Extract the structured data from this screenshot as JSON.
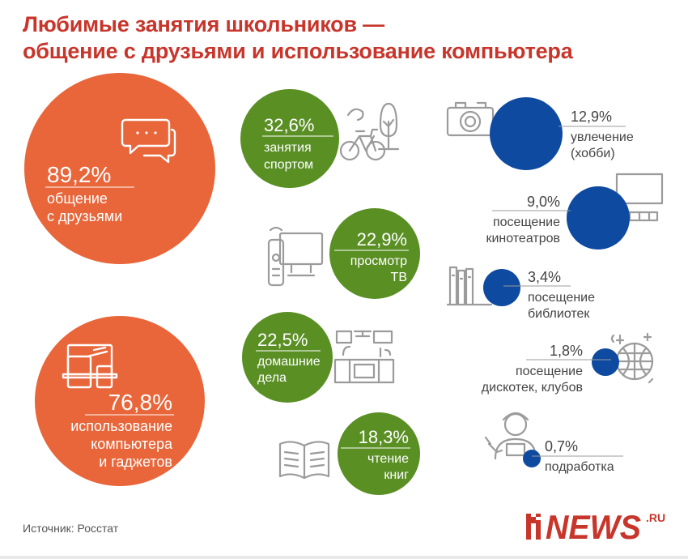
{
  "title": {
    "line1": "Любимые занятия школьников —",
    "line2": "общение с друзьями и использование компьютера"
  },
  "source": "Источник: Росстат",
  "logo": {
    "text": "NEWS",
    "suffix": ".RU"
  },
  "colors": {
    "title": "#c8352b",
    "orange": "#e8663a",
    "green": "#5a8f24",
    "blue": "#0d4aa0",
    "icon": "#9b9b9b",
    "logo": "#c8352b"
  },
  "chart_data": {
    "type": "bubble",
    "unit": "%",
    "items": [
      {
        "value": 89.2,
        "value_label": "89,2%",
        "label_lines": [
          "общение",
          "с друзьями"
        ],
        "group": "orange",
        "icon": "chat-bubbles-icon"
      },
      {
        "value": 76.8,
        "value_label": "76,8%",
        "label_lines": [
          "использование",
          "компьютера",
          "и гаджетов"
        ],
        "group": "orange",
        "icon": "devices-icon"
      },
      {
        "value": 32.6,
        "value_label": "32,6%",
        "label_lines": [
          "занятия",
          "спортом"
        ],
        "group": "green",
        "icon": "bicycle-tree-icon"
      },
      {
        "value": 22.9,
        "value_label": "22,9%",
        "label_lines": [
          "просмотр",
          "ТВ"
        ],
        "group": "green",
        "icon": "tv-remote-icon"
      },
      {
        "value": 22.5,
        "value_label": "22,5%",
        "label_lines": [
          "домашние",
          "дела"
        ],
        "group": "green",
        "icon": "kitchen-icon"
      },
      {
        "value": 18.3,
        "value_label": "18,3%",
        "label_lines": [
          "чтение",
          "книг"
        ],
        "group": "green",
        "icon": "open-book-icon"
      },
      {
        "value": 12.9,
        "value_label": "12,9%",
        "label_lines": [
          "увлечение",
          "(хобби)"
        ],
        "group": "blue",
        "icon": "camera-icon"
      },
      {
        "value": 9.0,
        "value_label": "9,0%",
        "label_lines": [
          "посещение",
          "кинотеатров"
        ],
        "group": "blue",
        "icon": "cinema-icon"
      },
      {
        "value": 3.4,
        "value_label": "3,4%",
        "label_lines": [
          "посещение",
          "библиотек"
        ],
        "group": "blue",
        "icon": "bookshelf-icon"
      },
      {
        "value": 1.8,
        "value_label": "1,8%",
        "label_lines": [
          "посещение",
          "дискотек, клубов"
        ],
        "group": "blue",
        "icon": "disco-ball-icon"
      },
      {
        "value": 0.7,
        "value_label": "0,7%",
        "label_lines": [
          "подработка"
        ],
        "group": "blue",
        "icon": "worker-icon"
      }
    ]
  }
}
